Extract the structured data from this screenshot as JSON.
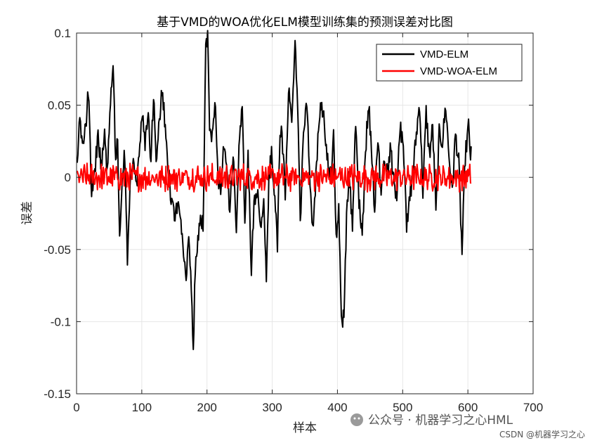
{
  "chart_data": {
    "type": "line",
    "title": "基于VMD的WOA优化ELM模型训练集的预测误差对比图",
    "xlabel": "样本",
    "ylabel": "误差",
    "xlim": [
      0,
      700
    ],
    "ylim": [
      -0.15,
      0.1
    ],
    "xticks": [
      "0",
      "100",
      "200",
      "300",
      "400",
      "500",
      "600",
      "700"
    ],
    "yticks": [
      "0.1",
      "0.05",
      "0",
      "-0.05",
      "-0.1",
      "-0.15"
    ],
    "grid": true,
    "legend": "top-right",
    "n_samples": 605,
    "series": [
      {
        "name": "VMD-ELM",
        "color": "#000000",
        "points": [
          [
            1,
            0.005
          ],
          [
            5,
            0.045
          ],
          [
            9,
            0.02
          ],
          [
            14,
            0.035
          ],
          [
            18,
            0.061
          ],
          [
            23,
            -0.01
          ],
          [
            28,
            0.005
          ],
          [
            33,
            0.03
          ],
          [
            38,
            0.005
          ],
          [
            43,
            0.035
          ],
          [
            47,
            0.0
          ],
          [
            52,
            0.05
          ],
          [
            56,
            0.075
          ],
          [
            60,
            0.01
          ],
          [
            63,
            0.03
          ],
          [
            66,
            -0.045
          ],
          [
            70,
            0.005
          ],
          [
            74,
            0.015
          ],
          [
            78,
            -0.058
          ],
          [
            83,
            0.0
          ],
          [
            88,
            0.012
          ],
          [
            92,
            -0.01
          ],
          [
            96,
            0.02
          ],
          [
            100,
            0.045
          ],
          [
            105,
            0.025
          ],
          [
            110,
            0.04
          ],
          [
            114,
            0.012
          ],
          [
            118,
            0.055
          ],
          [
            122,
            0.015
          ],
          [
            126,
            0.032
          ],
          [
            130,
            0.06
          ],
          [
            134,
            0.045
          ],
          [
            138,
            0.025
          ],
          [
            142,
            -0.002
          ],
          [
            146,
            -0.02
          ],
          [
            150,
            -0.025
          ],
          [
            155,
            -0.018
          ],
          [
            160,
            -0.035
          ],
          [
            164,
            -0.055
          ],
          [
            168,
            -0.07
          ],
          [
            172,
            -0.045
          ],
          [
            176,
            -0.075
          ],
          [
            179,
            -0.124
          ],
          [
            182,
            -0.06
          ],
          [
            186,
            -0.045
          ],
          [
            190,
            -0.025
          ],
          [
            194,
            -0.035
          ],
          [
            198,
            0.09
          ],
          [
            201,
            0.097
          ],
          [
            204,
            0.035
          ],
          [
            208,
            0.03
          ],
          [
            213,
            0.055
          ],
          [
            217,
            0.0
          ],
          [
            221,
            -0.01
          ],
          [
            226,
            0.025
          ],
          [
            231,
            0.0
          ],
          [
            235,
            -0.025
          ],
          [
            240,
            0.015
          ],
          [
            245,
            -0.035
          ],
          [
            249,
            0.02
          ],
          [
            254,
            0.045
          ],
          [
            258,
            -0.025
          ],
          [
            263,
            0.013
          ],
          [
            268,
            -0.065
          ],
          [
            272,
            -0.02
          ],
          [
            277,
            -0.01
          ],
          [
            282,
            -0.035
          ],
          [
            287,
            -0.015
          ],
          [
            291,
            -0.075
          ],
          [
            295,
            0.0
          ],
          [
            299,
            0.02
          ],
          [
            303,
            -0.01
          ],
          [
            308,
            -0.045
          ],
          [
            312,
            0.035
          ],
          [
            316,
            0.022
          ],
          [
            320,
            -0.01
          ],
          [
            325,
            0.06
          ],
          [
            330,
            0.035
          ],
          [
            335,
            0.09
          ],
          [
            338,
            0.065
          ],
          [
            343,
            -0.03
          ],
          [
            348,
            0.03
          ],
          [
            353,
            0.055
          ],
          [
            358,
            -0.005
          ],
          [
            362,
            -0.035
          ],
          [
            366,
            -0.01
          ],
          [
            371,
            0.035
          ],
          [
            376,
            0.052
          ],
          [
            380,
            0.035
          ],
          [
            384,
            0.015
          ],
          [
            390,
            0.0
          ],
          [
            394,
            0.03
          ],
          [
            398,
            -0.045
          ],
          [
            402,
            -0.02
          ],
          [
            406,
            -0.1
          ],
          [
            410,
            -0.098
          ],
          [
            414,
            -0.03
          ],
          [
            418,
            0.005
          ],
          [
            423,
            -0.035
          ],
          [
            428,
            0.04
          ],
          [
            433,
            -0.015
          ],
          [
            438,
            -0.045
          ],
          [
            443,
            0.02
          ],
          [
            448,
            0.05
          ],
          [
            452,
            0.02
          ],
          [
            457,
            -0.02
          ],
          [
            462,
            0.025
          ],
          [
            467,
            -0.01
          ],
          [
            472,
            0.015
          ],
          [
            477,
            0.005
          ],
          [
            481,
            0.02
          ],
          [
            486,
            0.0
          ],
          [
            491,
            -0.015
          ],
          [
            496,
            0.035
          ],
          [
            501,
            0.025
          ],
          [
            506,
            -0.035
          ],
          [
            511,
            -0.015
          ],
          [
            516,
            0.005
          ],
          [
            521,
            0.03
          ],
          [
            526,
            0.052
          ],
          [
            531,
            -0.01
          ],
          [
            536,
            0.045
          ],
          [
            541,
            0.015
          ],
          [
            546,
            0.035
          ],
          [
            551,
            -0.025
          ],
          [
            556,
            0.03
          ],
          [
            561,
            0.025
          ],
          [
            566,
            0.05
          ],
          [
            571,
            0.015
          ],
          [
            576,
            -0.01
          ],
          [
            581,
            0.03
          ],
          [
            586,
            0.01
          ],
          [
            591,
            -0.053
          ],
          [
            596,
            0.015
          ],
          [
            601,
            0.035
          ],
          [
            604,
            0.015
          ]
        ]
      },
      {
        "name": "VMD-WOA-ELM",
        "color": "#FF0000",
        "amplitude": 0.008
      }
    ]
  },
  "watermark": {
    "main": "公众号 · 机器学习之心HML",
    "sub": "CSDN @机器学习之心"
  }
}
